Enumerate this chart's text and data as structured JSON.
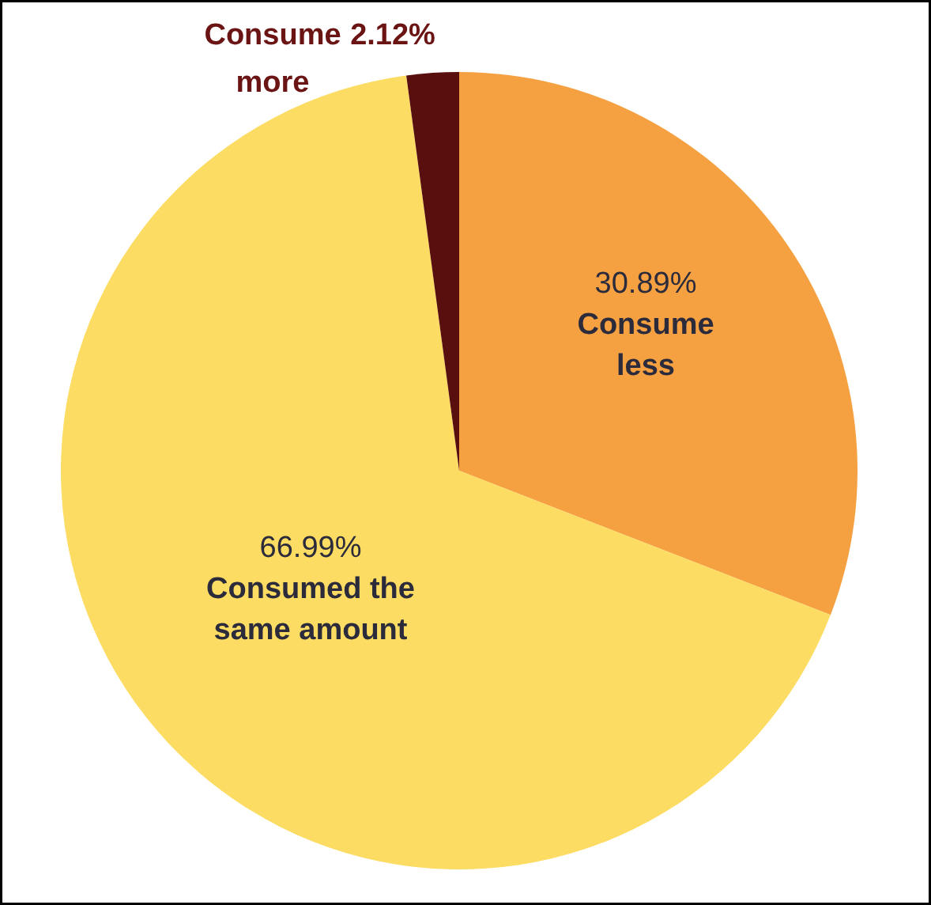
{
  "chart_data": {
    "type": "pie",
    "categories": [
      "Consume less",
      "Consumed the same amount",
      "Consume more"
    ],
    "values": [
      30.89,
      66.99,
      2.12
    ],
    "value_labels": [
      "30.89%",
      "66.99%",
      "2.12%"
    ],
    "colors": [
      "#f5a142",
      "#fcdc62",
      "#5a0f0f"
    ]
  }
}
